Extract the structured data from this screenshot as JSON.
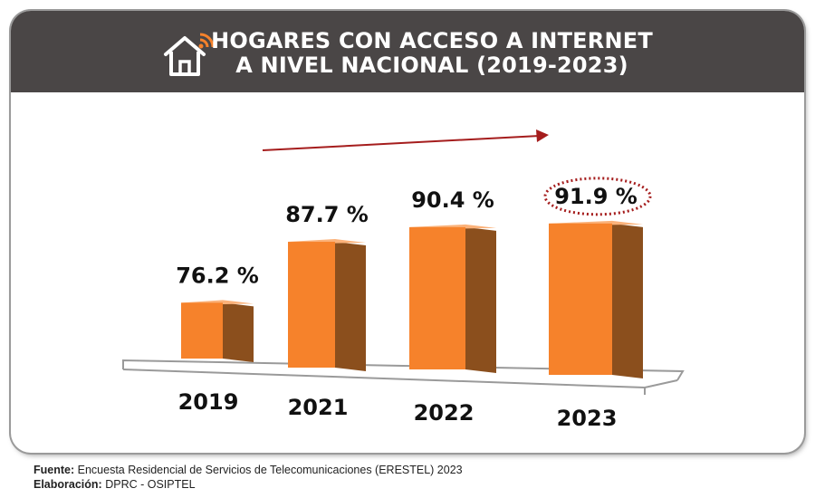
{
  "title_lines": [
    "HOGARES CON ACCESO A INTERNET",
    "A NIVEL NACIONAL (2019-2023)"
  ],
  "chart_data": {
    "type": "bar",
    "categories": [
      "2019",
      "2021",
      "2022",
      "2023"
    ],
    "values": [
      76.2,
      87.7,
      90.4,
      91.9
    ],
    "value_labels": [
      "76.2 %",
      "87.7 %",
      "90.4 %",
      "91.9 %"
    ],
    "highlighted_category": "2023",
    "trend_arrow": true,
    "grid": false,
    "legend": "none"
  },
  "footer": {
    "source_label": "Fuente:",
    "source_text": "Encuesta Residencial de Servicios de Telecomunicaciones (ERESTEL) 2023",
    "credit_label": "Elaboración:",
    "credit_text": "DPRC - OSIPTEL"
  },
  "colors": {
    "header_bg": "#4a4646",
    "bar_front": "#f6822b",
    "bar_side": "#8b4f1d",
    "bar_top": "#fbb27a",
    "highlight_oval": "#a51d1d",
    "arrow": "#a51d1d",
    "icon_accent": "#f6822b"
  }
}
